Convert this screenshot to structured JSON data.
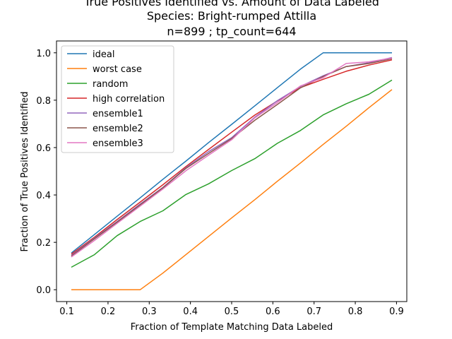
{
  "chart_data": {
    "type": "line",
    "title_lines": [
      "True Positives Identified vs. Amount of Data Labeled",
      "Species: Bright-rumped Attilla",
      "n=899 ; tp_count=644"
    ],
    "xlabel": "Fraction of Template Matching Data Labeled",
    "ylabel": "Fraction of True Positives Identified",
    "xlim": [
      0.075,
      0.925
    ],
    "ylim": [
      -0.05,
      1.05
    ],
    "xticks": [
      0.1,
      0.2,
      0.3,
      0.4,
      0.5,
      0.6,
      0.7,
      0.8,
      0.9
    ],
    "xtick_labels": [
      "0.1",
      "0.2",
      "0.3",
      "0.4",
      "0.5",
      "0.6",
      "0.7",
      "0.8",
      "0.9"
    ],
    "yticks": [
      0.0,
      0.2,
      0.4,
      0.6,
      0.8,
      1.0
    ],
    "ytick_labels": [
      "0.0",
      "0.2",
      "0.4",
      "0.6",
      "0.8",
      "1.0"
    ],
    "grid": false,
    "legend_position": "upper-left",
    "x": [
      0.111,
      0.167,
      0.222,
      0.278,
      0.333,
      0.389,
      0.444,
      0.5,
      0.556,
      0.611,
      0.667,
      0.722,
      0.778,
      0.833,
      0.889
    ],
    "series": [
      {
        "name": "ideal",
        "color": "#1f77b4",
        "values": [
          0.155,
          0.233,
          0.31,
          0.388,
          0.466,
          0.543,
          0.621,
          0.698,
          0.776,
          0.853,
          0.931,
          1.0,
          1.0,
          1.0,
          1.0
        ]
      },
      {
        "name": "worst case",
        "color": "#ff7f0e",
        "values": [
          0.0,
          0.0,
          0.0,
          0.0,
          0.07,
          0.148,
          0.225,
          0.303,
          0.38,
          0.458,
          0.535,
          0.613,
          0.69,
          0.768,
          0.845
        ]
      },
      {
        "name": "random",
        "color": "#2ca02c",
        "values": [
          0.095,
          0.148,
          0.228,
          0.288,
          0.333,
          0.402,
          0.447,
          0.503,
          0.553,
          0.618,
          0.672,
          0.738,
          0.785,
          0.825,
          0.885
        ]
      },
      {
        "name": "high correlation",
        "color": "#d62728",
        "values": [
          0.15,
          0.222,
          0.296,
          0.37,
          0.443,
          0.52,
          0.592,
          0.665,
          0.737,
          0.797,
          0.853,
          0.888,
          0.922,
          0.948,
          0.97
        ]
      },
      {
        "name": "ensemble1",
        "color": "#9467bd",
        "values": [
          0.145,
          0.218,
          0.288,
          0.362,
          0.432,
          0.515,
          0.583,
          0.642,
          0.728,
          0.798,
          0.858,
          0.903,
          0.942,
          0.958,
          0.98
        ]
      },
      {
        "name": "ensemble2",
        "color": "#8c564b",
        "values": [
          0.142,
          0.215,
          0.285,
          0.358,
          0.43,
          0.512,
          0.575,
          0.638,
          0.715,
          0.782,
          0.852,
          0.9,
          0.942,
          0.955,
          0.975
        ]
      },
      {
        "name": "ensemble3",
        "color": "#e377c2",
        "values": [
          0.138,
          0.208,
          0.28,
          0.353,
          0.425,
          0.502,
          0.568,
          0.633,
          0.725,
          0.79,
          0.86,
          0.895,
          0.955,
          0.962,
          0.978
        ]
      }
    ]
  }
}
